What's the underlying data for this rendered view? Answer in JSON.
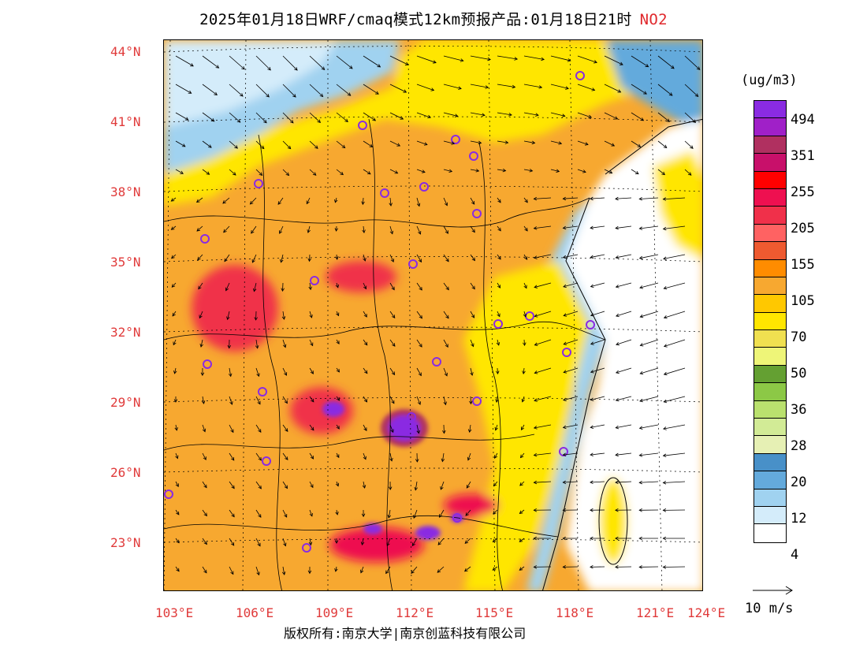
{
  "title": "2025年01月18日WRF/cmaq模式12km预报产品:01月18日21时",
  "pollutant": "NO2",
  "unit": "(ug/m3)",
  "lat_labels": [
    "44°N",
    "41°N",
    "38°N",
    "35°N",
    "32°N",
    "29°N",
    "26°N",
    "23°N"
  ],
  "lon_labels": [
    "103°E",
    "106°E",
    "109°E",
    "112°E",
    "115°E",
    "118°E",
    "121°E",
    "124°E"
  ],
  "legend": {
    "colors": [
      "#8a2be2",
      "#a020c8",
      "#b03060",
      "#c8106a",
      "#ff0000",
      "#ee1050",
      "#f0304a",
      "#ff6262",
      "#ee5a30",
      "#ff8c00",
      "#f7a830",
      "#ffc800",
      "#ffe600",
      "#f0e050",
      "#eef578",
      "#64a032",
      "#8cc846",
      "#bae16e",
      "#d2eb96",
      "#e6f0b4",
      "#4890c8",
      "#64aadc",
      "#a0d2f0",
      "#d4ecfa",
      "#ffffff"
    ],
    "labels": [
      "494",
      "351",
      "255",
      "205",
      "155",
      "105",
      "70",
      "50",
      "36",
      "28",
      "20",
      "12",
      "4"
    ]
  },
  "vector_label": "10 m/s",
  "copyright": "版权所有:南京大学|南京创蓝科技有限公司"
}
